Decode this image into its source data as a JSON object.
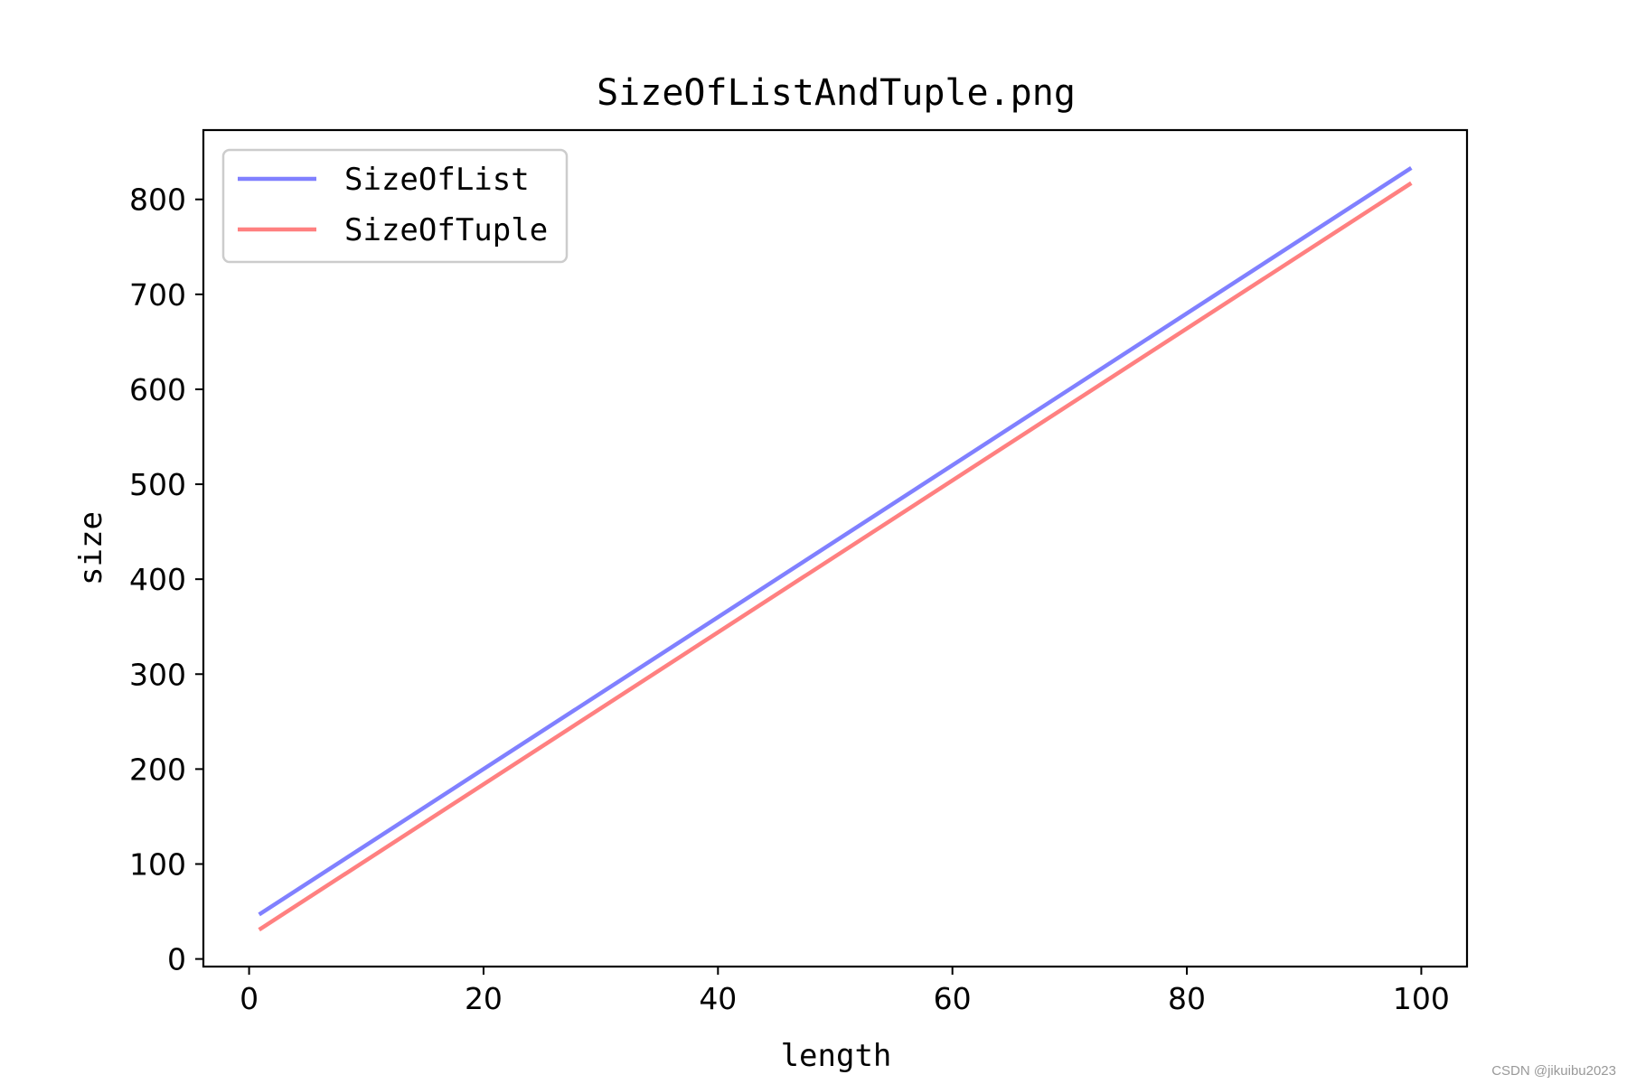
{
  "chart_data": {
    "type": "line",
    "title": "SizeOfListAndTuple.png",
    "xlabel": "length",
    "ylabel": "size",
    "xlim": [
      -3.9,
      103.9
    ],
    "ylim": [
      -8,
      873
    ],
    "xticks": [
      0,
      20,
      40,
      60,
      80,
      100
    ],
    "yticks": [
      0,
      100,
      200,
      300,
      400,
      500,
      600,
      700,
      800
    ],
    "grid": false,
    "legend_position": "upper-left",
    "series": [
      {
        "name": "SizeOfList",
        "color": "#8080ff",
        "x": [
          1,
          99
        ],
        "y": [
          48,
          832
        ]
      },
      {
        "name": "SizeOfTuple",
        "color": "#ff8080",
        "x": [
          1,
          99
        ],
        "y": [
          32,
          816
        ]
      }
    ]
  },
  "watermark": "CSDN @jikuibu2023"
}
